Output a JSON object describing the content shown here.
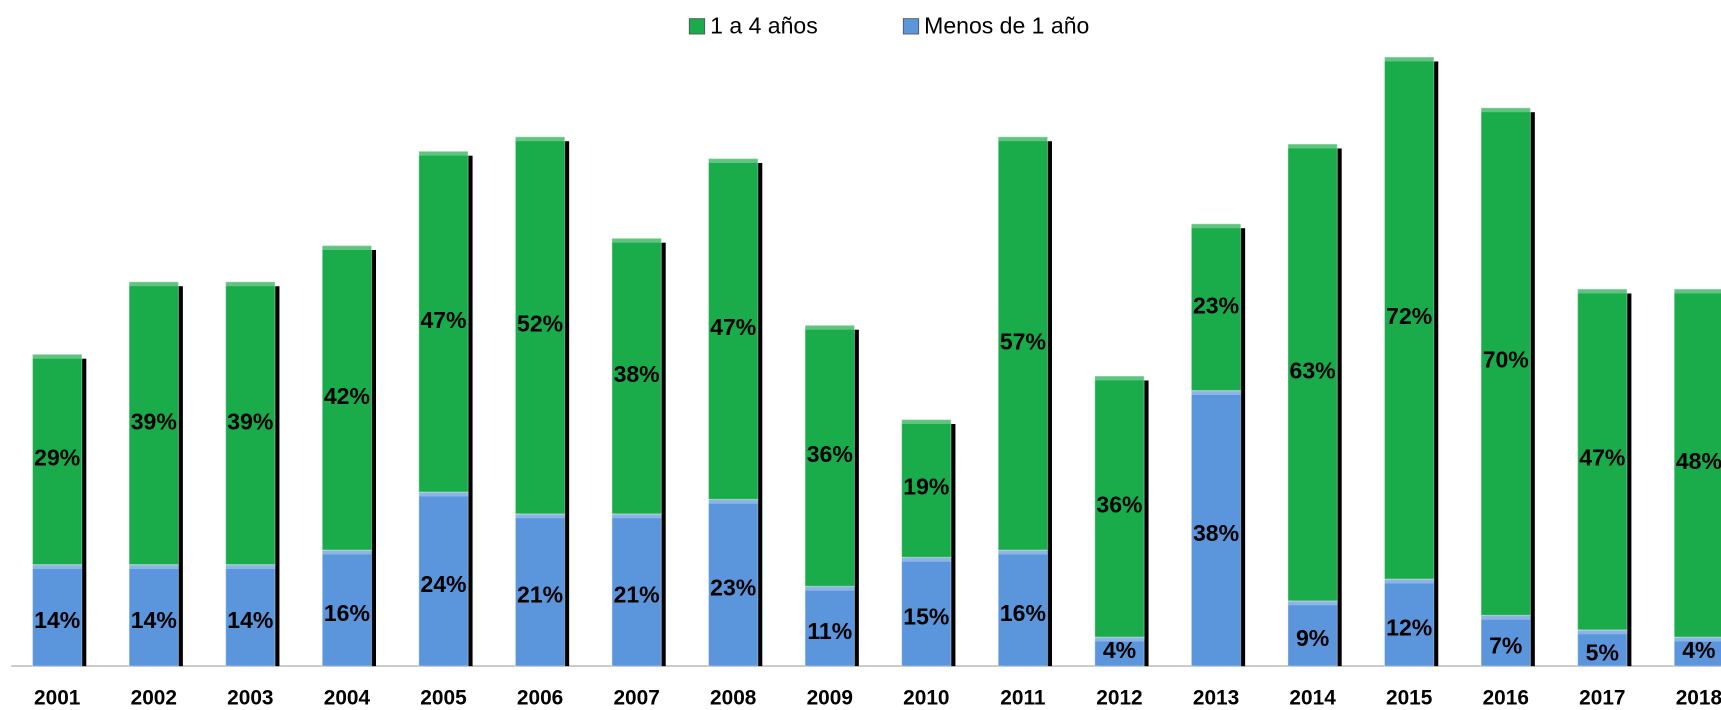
{
  "chart_data": {
    "type": "stacked_bar",
    "categories": [
      "2001",
      "2002",
      "2003",
      "2004",
      "2005",
      "2006",
      "2007",
      "2008",
      "2009",
      "2010",
      "2011",
      "2012",
      "2013",
      "2014",
      "2015",
      "2016",
      "2017",
      "2018"
    ],
    "series": [
      {
        "name": "Menos de 1 año",
        "color": "#5b96dc",
        "values": [
          14,
          14,
          14,
          16,
          24,
          21,
          21,
          23,
          11,
          15,
          16,
          4,
          38,
          9,
          12,
          7,
          5,
          4
        ],
        "value_labels": [
          "14%",
          "14%",
          "14%",
          "16%",
          "24%",
          "21%",
          "21%",
          "23%",
          "11%",
          "15%",
          "16%",
          "4%",
          "38%",
          "9%",
          "12%",
          "7%",
          "5%",
          "4%"
        ]
      },
      {
        "name": "1 a 4 años",
        "color": "#1aab4a",
        "values": [
          29,
          39,
          39,
          42,
          47,
          52,
          38,
          47,
          36,
          19,
          57,
          36,
          23,
          63,
          72,
          70,
          47,
          48
        ],
        "value_labels": [
          "29%",
          "39%",
          "39%",
          "42%",
          "47%",
          "52%",
          "38%",
          "47%",
          "36%",
          "19%",
          "57%",
          "36%",
          "23%",
          "63%",
          "72%",
          "70%",
          "47%",
          "48%"
        ]
      }
    ]
  }
}
